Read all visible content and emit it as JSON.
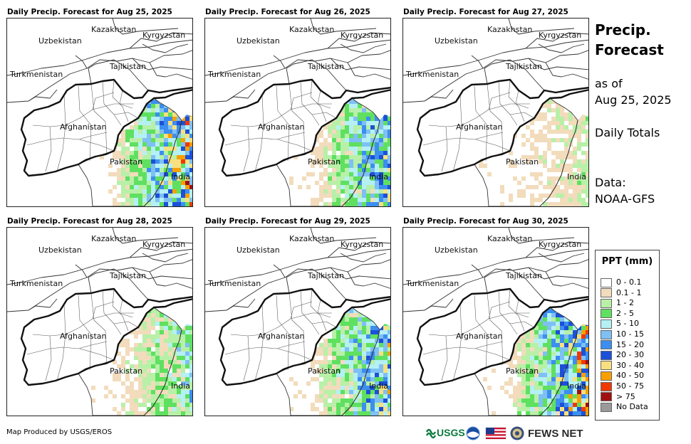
{
  "panels": [
    {
      "title": "Daily Precip. Forecast for Aug 25, 2025",
      "intensity": 1.0
    },
    {
      "title": "Daily Precip. Forecast for Aug 26, 2025",
      "intensity": 0.75
    },
    {
      "title": "Daily Precip. Forecast for Aug 27, 2025",
      "intensity": 0.2
    },
    {
      "title": "Daily Precip. Forecast for Aug 28, 2025",
      "intensity": 0.45
    },
    {
      "title": "Daily Precip. Forecast for Aug 29, 2025",
      "intensity": 0.8
    },
    {
      "title": "Daily Precip. Forecast for Aug 30, 2025",
      "intensity": 1.0
    }
  ],
  "country_labels": {
    "kazakhstan": "Kazakhstan",
    "uzbekistan": "Uzbekistan",
    "kyrgyzstan": "Kyrgyzstan",
    "tajikistan": "Tajikistan",
    "turkmenistan": "Turkmenistan",
    "afghanistan": "Afghanistan",
    "pakistan": "Pakistan",
    "india": "India"
  },
  "sidebar": {
    "title_line1": "Precip.",
    "title_line2": "Forecast",
    "asof_line1": "as of",
    "asof_line2": "Aug 25, 2025",
    "totals": "Daily Totals",
    "data_line1": "Data:",
    "data_line2": "NOAA-GFS"
  },
  "legend": {
    "title": "PPT (mm)",
    "items": [
      {
        "label": "0 - 0.1",
        "color": "#ffffff"
      },
      {
        "label": "0.1 - 1",
        "color": "#f2dcbc"
      },
      {
        "label": "1 - 2",
        "color": "#b8f0a8"
      },
      {
        "label": "2 - 5",
        "color": "#5fe060"
      },
      {
        "label": "5 - 10",
        "color": "#b4f0f4"
      },
      {
        "label": "10 - 15",
        "color": "#7ec0f4"
      },
      {
        "label": "15 - 20",
        "color": "#3c8ef0"
      },
      {
        "label": "20 - 30",
        "color": "#1c50d8"
      },
      {
        "label": "30 - 40",
        "color": "#f8e080"
      },
      {
        "label": "40 - 50",
        "color": "#f8a000"
      },
      {
        "label": "50 - 75",
        "color": "#f03800"
      },
      {
        "label": "> 75",
        "color": "#a01010"
      },
      {
        "label": "No Data",
        "color": "#9a9a9a"
      }
    ]
  },
  "footer": {
    "credit": "Map Produced by USGS/EROS",
    "usgs": "USGS",
    "fews": "FEWS NET"
  }
}
